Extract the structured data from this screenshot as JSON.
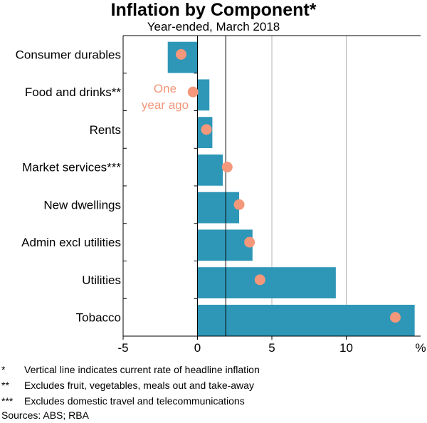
{
  "chart_data": {
    "type": "bar",
    "orientation": "horizontal",
    "title": "Inflation by Component*",
    "subtitle": "Year-ended, March 2018",
    "categories": [
      "Consumer durables",
      "Food and drinks**",
      "Rents",
      "Market services***",
      "New dwellings",
      "Admin excl utilities",
      "Utilities",
      "Tobacco"
    ],
    "series": [
      {
        "name": "Year-ended, March 2018",
        "type": "bar",
        "color": "#2e97b7",
        "values": [
          -2.0,
          0.8,
          1.0,
          1.7,
          2.8,
          3.7,
          9.3,
          14.6
        ]
      },
      {
        "name": "One year ago",
        "type": "scatter",
        "color": "#f4977a",
        "values": [
          -1.1,
          -0.3,
          0.6,
          2.0,
          2.8,
          3.5,
          4.2,
          13.3
        ]
      }
    ],
    "headline_inflation": 1.9,
    "xlim": [
      -5,
      15
    ],
    "xticks": [
      -5,
      0,
      5,
      10
    ],
    "xtick_labels": [
      "-5",
      "0",
      "5",
      "10"
    ],
    "unit_label": "%",
    "annotation": {
      "text_line1": "One",
      "text_line2": "year ago"
    },
    "gridlines": [
      5,
      10
    ]
  },
  "footnotes": [
    {
      "mark": "*",
      "text": "Vertical line indicates current rate of headline inflation"
    },
    {
      "mark": "**",
      "text": "Excludes fruit, vegetables, meals out and take-away"
    },
    {
      "mark": "***",
      "text": "Excludes domestic travel and telecommunications"
    }
  ],
  "sources": "Sources: ABS; RBA"
}
